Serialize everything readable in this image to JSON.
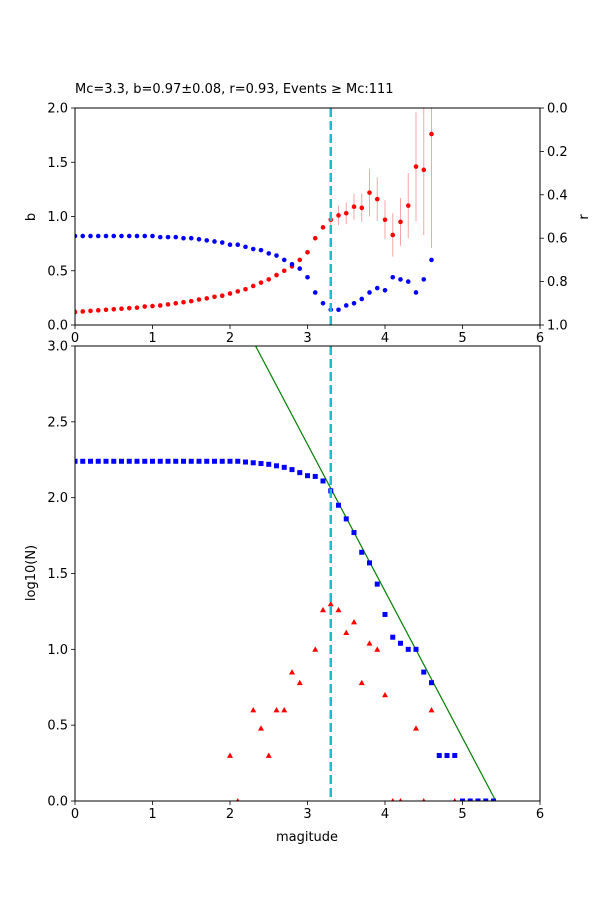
{
  "chart_data": [
    {
      "type": "scatter",
      "title": "Mc=3.3, b=0.97±0.08, r=0.93, Events ≥ Mc:111",
      "xlabel": "",
      "ylabel": "b",
      "ylabel_right": "r",
      "xlim": [
        0,
        6
      ],
      "ylim": [
        0,
        2
      ],
      "ylim_right": [
        1,
        0
      ],
      "x_ticks": [
        0,
        1,
        2,
        3,
        4,
        5,
        6
      ],
      "y_ticks": [
        0,
        0.5,
        1,
        1.5,
        2
      ],
      "y_ticks_right": [
        0,
        0.2,
        0.4,
        0.6,
        0.8,
        1
      ],
      "grid": false,
      "mc_line": {
        "x": 3.3,
        "color": "#17becf",
        "style": "dashed"
      },
      "series": [
        {
          "color": "#ff0000",
          "axis": "left",
          "marker": "circle",
          "x": [
            0.0,
            0.1,
            0.2,
            0.3,
            0.4,
            0.5,
            0.6,
            0.7,
            0.8,
            0.9,
            1.0,
            1.1,
            1.2,
            1.3,
            1.4,
            1.5,
            1.6,
            1.7,
            1.8,
            1.9,
            2.0,
            2.1,
            2.2,
            2.3,
            2.4,
            2.5,
            2.6,
            2.7,
            2.8,
            2.9,
            3.0,
            3.1,
            3.2,
            3.3,
            3.4,
            3.5,
            3.6,
            3.7,
            3.8,
            3.9,
            4.0,
            4.1,
            4.2,
            4.3,
            4.4,
            4.5,
            4.6
          ],
          "y": [
            0.12,
            0.125,
            0.13,
            0.135,
            0.14,
            0.145,
            0.15,
            0.155,
            0.16,
            0.17,
            0.175,
            0.18,
            0.19,
            0.2,
            0.21,
            0.22,
            0.235,
            0.245,
            0.26,
            0.27,
            0.29,
            0.31,
            0.33,
            0.36,
            0.39,
            0.42,
            0.46,
            0.5,
            0.54,
            0.6,
            0.67,
            0.8,
            0.9,
            0.97,
            1.01,
            1.03,
            1.09,
            1.08,
            1.22,
            1.16,
            0.97,
            0.83,
            0.95,
            1.1,
            1.46,
            1.43,
            1.76
          ],
          "err": [
            0,
            0,
            0,
            0,
            0,
            0,
            0,
            0,
            0,
            0,
            0,
            0,
            0,
            0,
            0,
            0,
            0,
            0,
            0,
            0,
            0,
            0,
            0,
            0,
            0,
            0,
            0,
            0,
            0,
            0,
            0,
            0,
            0,
            0.08,
            0.09,
            0.1,
            0.12,
            0.13,
            0.22,
            0.2,
            0.18,
            0.2,
            0.22,
            0.3,
            0.5,
            0.6,
            1.05
          ]
        },
        {
          "color": "#0000ff",
          "axis": "right",
          "marker": "circle",
          "x": [
            0.0,
            0.1,
            0.2,
            0.3,
            0.4,
            0.5,
            0.6,
            0.7,
            0.8,
            0.9,
            1.0,
            1.1,
            1.2,
            1.3,
            1.4,
            1.5,
            1.6,
            1.7,
            1.8,
            1.9,
            2.0,
            2.1,
            2.2,
            2.3,
            2.4,
            2.5,
            2.6,
            2.7,
            2.8,
            2.9,
            3.0,
            3.1,
            3.2,
            3.3,
            3.4,
            3.5,
            3.6,
            3.7,
            3.8,
            3.9,
            4.0,
            4.1,
            4.2,
            4.3,
            4.4,
            4.5,
            4.6
          ],
          "y": [
            0.59,
            0.59,
            0.59,
            0.59,
            0.59,
            0.59,
            0.59,
            0.59,
            0.59,
            0.59,
            0.59,
            0.595,
            0.595,
            0.595,
            0.6,
            0.6,
            0.605,
            0.61,
            0.615,
            0.62,
            0.63,
            0.63,
            0.64,
            0.65,
            0.655,
            0.67,
            0.68,
            0.7,
            0.72,
            0.74,
            0.78,
            0.85,
            0.9,
            0.93,
            0.93,
            0.91,
            0.9,
            0.88,
            0.85,
            0.83,
            0.84,
            0.78,
            0.79,
            0.8,
            0.85,
            0.79,
            0.7
          ]
        }
      ]
    },
    {
      "type": "scatter",
      "title": "",
      "xlabel": "magitude",
      "ylabel": "log10(N)",
      "xlim": [
        0,
        6
      ],
      "ylim": [
        0,
        3
      ],
      "x_ticks": [
        0,
        1,
        2,
        3,
        4,
        5,
        6
      ],
      "y_ticks": [
        0,
        0.5,
        1,
        1.5,
        2,
        2.5,
        3
      ],
      "grid": false,
      "mc_line": {
        "x": 3.3,
        "color": "#17becf",
        "style": "dashed"
      },
      "fit_line": {
        "color": "#008000",
        "x": [
          2.33,
          5.43
        ],
        "y": [
          3.0,
          0.0
        ]
      },
      "series": [
        {
          "color": "#0000ff",
          "marker": "square",
          "x": [
            0.0,
            0.1,
            0.2,
            0.3,
            0.4,
            0.5,
            0.6,
            0.7,
            0.8,
            0.9,
            1.0,
            1.1,
            1.2,
            1.3,
            1.4,
            1.5,
            1.6,
            1.7,
            1.8,
            1.9,
            2.0,
            2.1,
            2.2,
            2.3,
            2.4,
            2.5,
            2.6,
            2.7,
            2.8,
            2.9,
            3.0,
            3.1,
            3.2,
            3.3,
            3.4,
            3.5,
            3.6,
            3.7,
            3.8,
            3.9,
            4.0,
            4.1,
            4.2,
            4.3,
            4.4,
            4.5,
            4.6,
            4.7,
            4.8,
            4.9,
            5.0,
            5.1,
            5.2,
            5.3,
            5.4
          ],
          "y": [
            2.24,
            2.24,
            2.24,
            2.24,
            2.24,
            2.24,
            2.24,
            2.24,
            2.24,
            2.24,
            2.24,
            2.24,
            2.24,
            2.24,
            2.24,
            2.24,
            2.24,
            2.24,
            2.24,
            2.24,
            2.24,
            2.24,
            2.235,
            2.23,
            2.225,
            2.22,
            2.21,
            2.2,
            2.185,
            2.165,
            2.145,
            2.14,
            2.11,
            2.045,
            1.95,
            1.86,
            1.77,
            1.64,
            1.57,
            1.43,
            1.23,
            1.08,
            1.04,
            1.0,
            1.0,
            0.85,
            0.78,
            0.3,
            0.3,
            0.3,
            0.0,
            0.0,
            0.0,
            0.0,
            0.0
          ]
        },
        {
          "color": "#ff0000",
          "marker": "triangle",
          "x": [
            2.0,
            2.1,
            2.3,
            2.4,
            2.5,
            2.6,
            2.7,
            2.8,
            2.9,
            3.1,
            3.2,
            3.3,
            3.4,
            3.5,
            3.6,
            3.7,
            3.8,
            3.9,
            4.0,
            4.1,
            4.2,
            4.4,
            4.5,
            4.6,
            4.9
          ],
          "y": [
            0.3,
            0.0,
            0.6,
            0.48,
            0.3,
            0.6,
            0.6,
            0.85,
            0.78,
            1.0,
            1.26,
            1.3,
            1.26,
            1.11,
            1.18,
            0.78,
            1.04,
            1.0,
            0.7,
            0.0,
            0.0,
            0.48,
            0.0,
            0.6,
            0.0
          ]
        }
      ]
    }
  ]
}
